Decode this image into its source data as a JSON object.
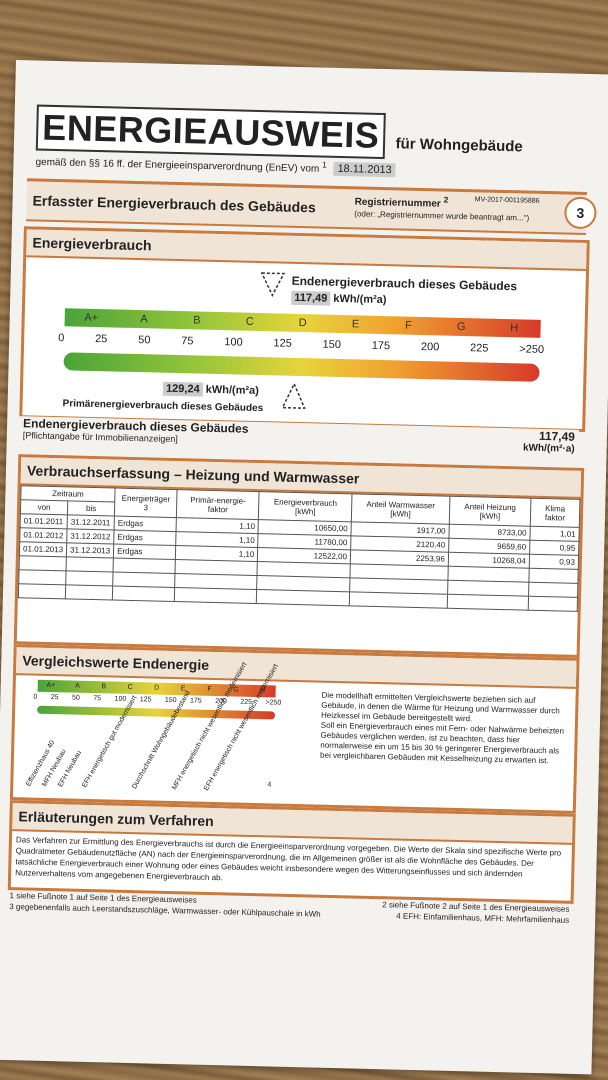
{
  "header": {
    "title": "ENERGIEAUSWEIS",
    "subtitle": "für Wohngebäude",
    "enev_text": "gemäß den §§ 16 ff. der Energieeinsparverordnung (EnEV) vom",
    "enev_ref": "1",
    "enev_date": "18.11.2013",
    "section_title": "Erfasster Energieverbrauch des Gebäudes",
    "registry_label": "Registriernummer",
    "registry_ref": "2",
    "registry_number": "MV-2017-001195886",
    "registry_note": "(oder: „Registriernummer wurde beantragt am...\")",
    "page_number": "3"
  },
  "energy": {
    "heading": "Energieverbrauch",
    "end_label": "Endenergieverbrauch dieses Gebäudes",
    "end_value": "117,49",
    "unit": "kWh/(m²a)",
    "primary_value": "129,24",
    "primary_label": "Primärenergieverbrauch dieses Gebäudes",
    "classes": [
      "A+",
      "A",
      "B",
      "C",
      "D",
      "E",
      "F",
      "G",
      "H"
    ],
    "ticks": [
      "0",
      "25",
      "50",
      "75",
      "100",
      "125",
      "150",
      "175",
      "200",
      "225",
      ">250"
    ],
    "end_value_num": 117.49,
    "primary_value_num": 129.24,
    "scale_max": 250
  },
  "summary": {
    "label": "Endenergieverbrauch dieses Gebäudes",
    "note": "[Pflichtangabe für Immobilienanzeigen]",
    "value": "117,49",
    "unit": "kWh/(m²·a)"
  },
  "consumption": {
    "heading": "Verbrauchserfassung – Heizung und Warmwasser",
    "headers": {
      "period": "Zeitraum",
      "from": "von",
      "to": "bis",
      "carrier": "Energieträger 3",
      "primary_factor": "Primär-energie-faktor",
      "energy": "Energieverbrauch [kWh]",
      "hotwater": "Anteil Warmwasser [kWh]",
      "heating": "Anteil Heizung [kWh]",
      "climate": "Klima faktor"
    },
    "rows": [
      {
        "from": "01.01.2011",
        "to": "31.12.2011",
        "carrier": "Erdgas",
        "factor": "1,10",
        "energy": "10650,00",
        "hotwater": "1917,00",
        "heating": "8733,00",
        "climate": "1,01"
      },
      {
        "from": "01.01.2012",
        "to": "31.12.2012",
        "carrier": "Erdgas",
        "factor": "1,10",
        "energy": "11780,00",
        "hotwater": "2120,40",
        "heating": "9659,60",
        "climate": "0,95"
      },
      {
        "from": "01.01.2013",
        "to": "31.12.2013",
        "carrier": "Erdgas",
        "factor": "1,10",
        "energy": "12522,00",
        "hotwater": "2253,96",
        "heating": "10268,04",
        "climate": "0,93"
      }
    ]
  },
  "comparison": {
    "heading": "Vergleichswerte Endenergie",
    "ticks": [
      "0",
      "25",
      "50",
      "75",
      "100",
      "125",
      "150",
      "175",
      "200",
      "225",
      ">250"
    ],
    "labels": [
      "Effizienzhaus 40",
      "MFH Neubau",
      "EFH Neubau",
      "EFH energetisch gut modernisiert",
      "Durchschnitt Wohngebäudebestand",
      "MFH energetisch nicht wesentlich modernisiert",
      "EFH energetisch nicht wesentlich modernisiert"
    ],
    "footnote_ref": "4",
    "text1": "Die modellhaft ermittelten Vergleichswerte beziehen sich auf Gebäude, in denen die Wärme für Heizung und Warmwasser durch Heizkessel im Gebäude bereitgestellt wird.",
    "text2": "Soll ein Energieverbrauch eines mit Fern- oder Nahwärme beheizten Gebäudes verglichen werden, ist zu beachten, dass hier normalerweise ein um 15 bis 30 % geringerer Energieverbrauch als bei vergleichbaren Gebäuden mit Kesselheizung zu erwarten ist."
  },
  "explanation": {
    "heading": "Erläuterungen zum Verfahren",
    "text": "Das Verfahren zur Ermittlung des Energieverbrauchs ist durch die Energieeinsparverordnung vorgegeben. Die Werte der Skala sind spezifische Werte pro Quadratmeter Gebäudenutzfläche (AN) nach der Energieeinsparverordnung, die im Allgemeinen größer ist als die Wohnfläche des Gebäudes. Der tatsächliche Energieverbrauch einer Wohnung oder eines Gebäudes weicht insbesondere wegen des Witterungseinflusses und sich ändernden Nutzerverhaltens vom angegebenen Energieverbrauch ab.",
    "fn1": "1 siehe Fußnote 1 auf Seite 1 des Energieausweises",
    "fn2": "2 siehe Fußnote 2 auf Seite 1 des Energieausweises",
    "fn3": "3 gegebenenfalls auch Leerstandszuschläge, Warmwasser- oder Kühlpauschale in kWh",
    "fn4": "4 EFH: Einfamilienhaus, MFH: Mehrfamilienhaus"
  }
}
